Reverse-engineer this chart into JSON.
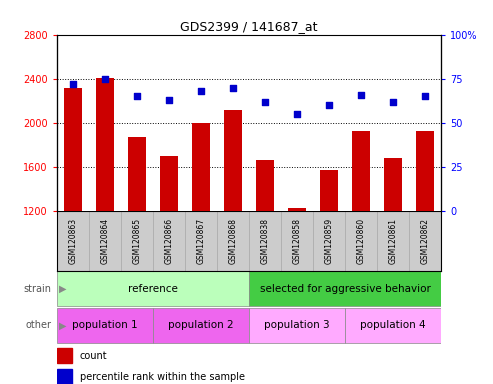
{
  "title": "GDS2399 / 141687_at",
  "samples": [
    "GSM120863",
    "GSM120864",
    "GSM120865",
    "GSM120866",
    "GSM120867",
    "GSM120868",
    "GSM120838",
    "GSM120858",
    "GSM120859",
    "GSM120860",
    "GSM120861",
    "GSM120862"
  ],
  "counts": [
    2320,
    2405,
    1870,
    1700,
    2000,
    2120,
    1660,
    1230,
    1570,
    1930,
    1680,
    1930
  ],
  "percentiles": [
    72,
    75,
    65,
    63,
    68,
    70,
    62,
    55,
    60,
    66,
    62,
    65
  ],
  "ylim_left": [
    1200,
    2800
  ],
  "ylim_right": [
    0,
    100
  ],
  "yticks_left": [
    1200,
    1600,
    2000,
    2400,
    2800
  ],
  "yticks_right": [
    0,
    25,
    50,
    75,
    100
  ],
  "bar_color": "#cc0000",
  "dot_color": "#0000cc",
  "strain_sections": [
    {
      "text": "reference",
      "start": 0,
      "end": 6,
      "color": "#bbffbb"
    },
    {
      "text": "selected for aggressive behavior",
      "start": 6,
      "end": 12,
      "color": "#44cc44"
    }
  ],
  "other_sections": [
    {
      "text": "population 1",
      "start": 0,
      "end": 3,
      "color": "#ee66ee"
    },
    {
      "text": "population 2",
      "start": 3,
      "end": 6,
      "color": "#ee66ee"
    },
    {
      "text": "population 3",
      "start": 6,
      "end": 9,
      "color": "#ffaaff"
    },
    {
      "text": "population 4",
      "start": 9,
      "end": 12,
      "color": "#ffaaff"
    }
  ],
  "tick_bg_color": "#cccccc",
  "tick_border_color": "#aaaaaa",
  "legend_count_color": "#cc0000",
  "legend_pct_color": "#0000cc",
  "bg_color": "#ffffff"
}
